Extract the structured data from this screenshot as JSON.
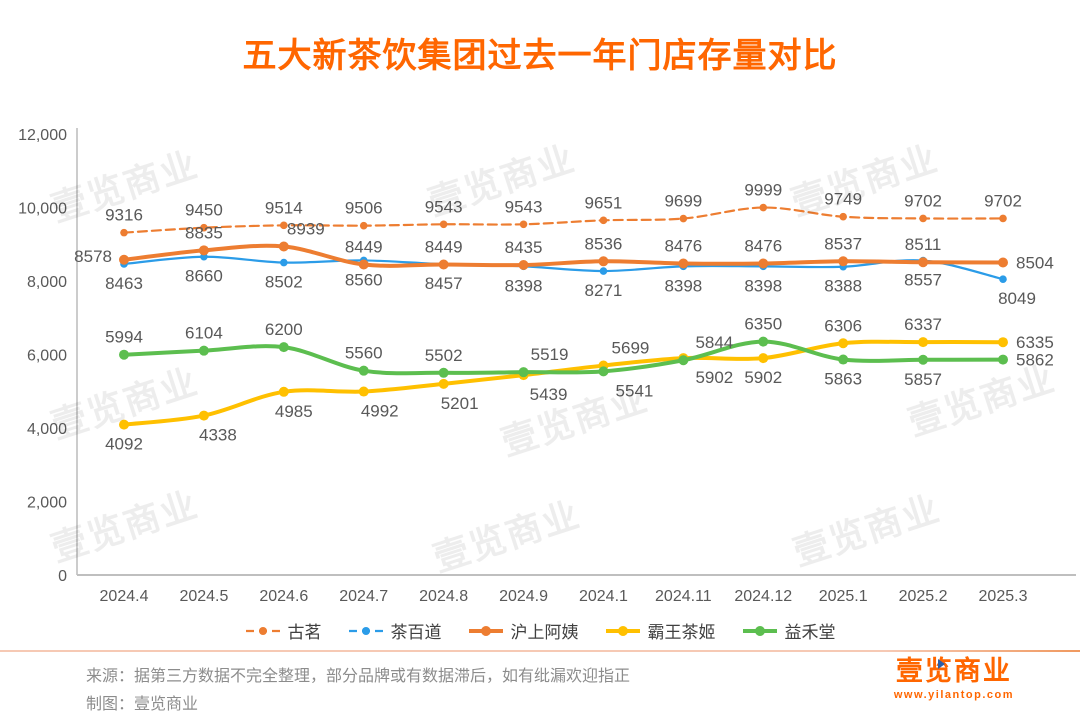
{
  "title": "五大新茶饮集团过去一年门店存量对比",
  "watermark": {
    "text": "壹览商业"
  },
  "footer": {
    "source": "来源：据第三方数据不完全整理，部分品牌或有数据滞后，如有纰漏欢迎指正",
    "credit": "制图：壹览商业"
  },
  "logo": {
    "name": "壹览商业",
    "url": "www.yilantop.com"
  },
  "colors": {
    "title_accent": "#FF6600",
    "axis_line": "#bfbfbf",
    "tick_text": "#595959",
    "data_label": "#595959",
    "footer_text": "#8c8c8c"
  },
  "chart_data": {
    "type": "line",
    "title": "五大新茶饮集团过去一年门店存量对比",
    "xlabel": "",
    "ylabel": "",
    "ylim": [
      0,
      12000
    ],
    "grid": false,
    "legend_position": "bottom",
    "ytick_labels": [
      "0",
      "2,000",
      "4,000",
      "6,000",
      "8,000",
      "10,000",
      "12,000"
    ],
    "categories": [
      "2024.4",
      "2024.5",
      "2024.6",
      "2024.7",
      "2024.8",
      "2024.9",
      "2024.1",
      "2024.11",
      "2024.12",
      "2025.1",
      "2025.2",
      "2025.3"
    ],
    "series": [
      {
        "name": "古茗",
        "color": "#ED7D31",
        "style": "dash-thin",
        "values": [
          9316,
          9450,
          9514,
          9506,
          9543,
          9543,
          9651,
          9699,
          9999,
          9749,
          9702,
          9702
        ],
        "label_side": [
          "above",
          "above",
          "above",
          "above",
          "above",
          "above",
          "above",
          "above",
          "above",
          "above",
          "above",
          "above"
        ],
        "label_dx": [
          0,
          0,
          0,
          0,
          0,
          0,
          0,
          0,
          0,
          0,
          0,
          0
        ]
      },
      {
        "name": "茶百道",
        "color": "#2B9CE8",
        "style": "thin",
        "values": [
          8463,
          8660,
          8502,
          8560,
          8457,
          8398,
          8271,
          8398,
          8398,
          8388,
          8557,
          8049
        ],
        "label_side": [
          "below",
          "below",
          "below",
          "below",
          "below",
          "below",
          "below",
          "below",
          "below",
          "below",
          "below",
          "below"
        ],
        "label_dx": [
          0,
          0,
          0,
          0,
          0,
          0,
          0,
          0,
          0,
          0,
          0,
          14
        ]
      },
      {
        "name": "沪上阿姨",
        "color": "#ED7D31",
        "style": "thick",
        "values": [
          8578,
          8835,
          8939,
          8449,
          8449,
          8435,
          8536,
          8476,
          8476,
          8537,
          8511,
          8504
        ],
        "label_side": [
          "left",
          "above",
          "above",
          "above",
          "above",
          "above",
          "above",
          "above",
          "above",
          "above",
          "above",
          "right"
        ],
        "label_dx": [
          0,
          0,
          22,
          0,
          0,
          0,
          0,
          0,
          0,
          0,
          0,
          0
        ]
      },
      {
        "name": "霸王茶姬",
        "color": "#FFC000",
        "style": "thick",
        "values": [
          4092,
          4338,
          4985,
          4992,
          5201,
          5439,
          5699,
          5902,
          5902,
          6306,
          6337,
          6335
        ],
        "label_side": [
          "below",
          "below",
          "below",
          "below",
          "below",
          "below",
          "above",
          "below",
          "below",
          "above",
          "above",
          "right"
        ],
        "label_dx": [
          0,
          14,
          10,
          16,
          16,
          25,
          27,
          31,
          0,
          0,
          0,
          0
        ]
      },
      {
        "name": "益禾堂",
        "color": "#5CBE4F",
        "style": "thick",
        "values": [
          5994,
          6104,
          6200,
          5560,
          5502,
          5519,
          5541,
          5844,
          6350,
          5863,
          5857,
          5862
        ],
        "label_side": [
          "above",
          "above",
          "above",
          "above",
          "above",
          "above",
          "below",
          "above",
          "above",
          "below",
          "below",
          "right"
        ],
        "label_dx": [
          0,
          0,
          0,
          0,
          0,
          26,
          31,
          31,
          0,
          0,
          0,
          0
        ]
      }
    ]
  }
}
